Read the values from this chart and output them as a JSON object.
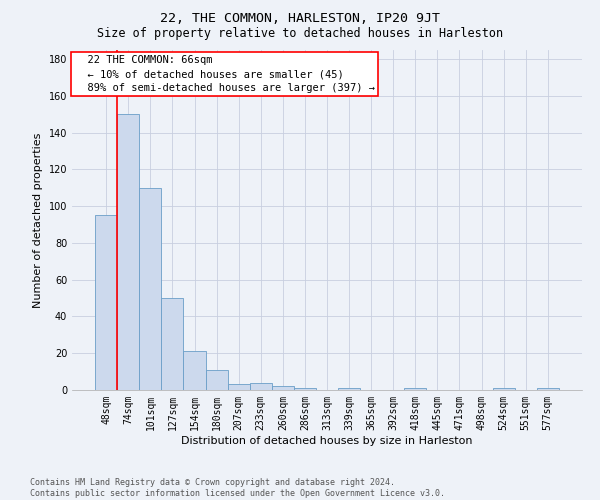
{
  "title": "22, THE COMMON, HARLESTON, IP20 9JT",
  "subtitle": "Size of property relative to detached houses in Harleston",
  "xlabel": "Distribution of detached houses by size in Harleston",
  "ylabel": "Number of detached properties",
  "bar_labels": [
    "48sqm",
    "74sqm",
    "101sqm",
    "127sqm",
    "154sqm",
    "180sqm",
    "207sqm",
    "233sqm",
    "260sqm",
    "286sqm",
    "313sqm",
    "339sqm",
    "365sqm",
    "392sqm",
    "418sqm",
    "445sqm",
    "471sqm",
    "498sqm",
    "524sqm",
    "551sqm",
    "577sqm"
  ],
  "bar_values": [
    95,
    150,
    110,
    50,
    21,
    11,
    3,
    4,
    2,
    1,
    0,
    1,
    0,
    0,
    1,
    0,
    0,
    0,
    1,
    0,
    1
  ],
  "bar_color": "#ccd9ed",
  "bar_edge_color": "#6a9ec8",
  "annotation_title": "22 THE COMMON: 66sqm",
  "annotation_line1": "← 10% of detached houses are smaller (45)",
  "annotation_line2": "89% of semi-detached houses are larger (397) →",
  "ylim": [
    0,
    185
  ],
  "yticks": [
    0,
    20,
    40,
    60,
    80,
    100,
    120,
    140,
    160,
    180
  ],
  "footer_line1": "Contains HM Land Registry data © Crown copyright and database right 2024.",
  "footer_line2": "Contains public sector information licensed under the Open Government Licence v3.0.",
  "bg_color": "#eef2f8",
  "grid_color": "#c8cfe0",
  "title_fontsize": 9.5,
  "subtitle_fontsize": 8.5,
  "axis_label_fontsize": 8,
  "tick_fontsize": 7,
  "annotation_fontsize": 7.5,
  "footer_fontsize": 6
}
